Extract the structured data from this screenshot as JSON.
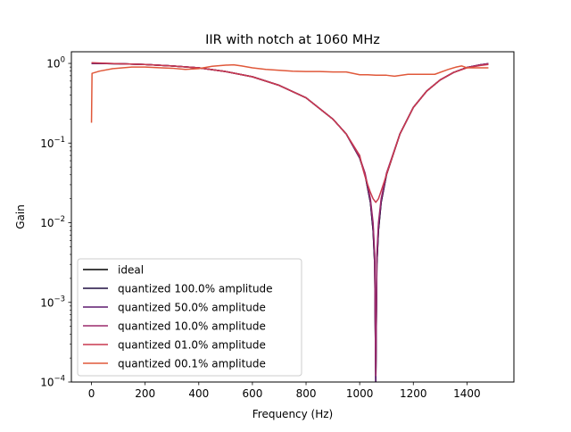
{
  "chart_data": {
    "type": "line",
    "title": "IIR with notch at 1060 MHz",
    "xlabel": "Frequency (Hz)",
    "ylabel": "Gain",
    "xlim": [
      -75,
      1575
    ],
    "ylim": [
      0.0001,
      1.4
    ],
    "yscale": "log",
    "grid": false,
    "legend_position": "lower-left",
    "xticks": [
      0,
      200,
      400,
      600,
      800,
      1000,
      1200,
      1400
    ],
    "yticks": [
      {
        "value": 1,
        "mantissa": "10",
        "exp": "0"
      },
      {
        "value": 0.1,
        "mantissa": "10",
        "exp": "−1"
      },
      {
        "value": 0.01,
        "mantissa": "10",
        "exp": "−2"
      },
      {
        "value": 0.001,
        "mantissa": "10",
        "exp": "−3"
      },
      {
        "value": 0.0001,
        "mantissa": "10",
        "exp": "−4"
      }
    ],
    "notch_hz": 1060,
    "series": [
      {
        "name": "ideal",
        "color": "#000000",
        "points": [
          [
            0,
            1.0
          ],
          [
            100,
            0.99
          ],
          [
            200,
            0.97
          ],
          [
            300,
            0.93
          ],
          [
            400,
            0.88
          ],
          [
            500,
            0.79
          ],
          [
            600,
            0.68
          ],
          [
            700,
            0.53
          ],
          [
            800,
            0.37
          ],
          [
            900,
            0.2
          ],
          [
            950,
            0.13
          ],
          [
            1000,
            0.065
          ],
          [
            1020,
            0.04
          ],
          [
            1040,
            0.018
          ],
          [
            1050,
            0.008
          ],
          [
            1056,
            0.003
          ],
          [
            1060,
            0.0001
          ],
          [
            1064,
            0.003
          ],
          [
            1070,
            0.008
          ],
          [
            1080,
            0.018
          ],
          [
            1100,
            0.04
          ],
          [
            1150,
            0.13
          ],
          [
            1200,
            0.28
          ],
          [
            1250,
            0.45
          ],
          [
            1300,
            0.62
          ],
          [
            1350,
            0.77
          ],
          [
            1400,
            0.89
          ],
          [
            1450,
            0.96
          ],
          [
            1480,
            0.99
          ]
        ]
      },
      {
        "name": "quantized 100.0% amplitude",
        "color": "#1f0d40",
        "points": [
          [
            0,
            1.0
          ],
          [
            100,
            0.99
          ],
          [
            200,
            0.97
          ],
          [
            300,
            0.93
          ],
          [
            400,
            0.88
          ],
          [
            500,
            0.79
          ],
          [
            600,
            0.68
          ],
          [
            700,
            0.53
          ],
          [
            800,
            0.37
          ],
          [
            900,
            0.2
          ],
          [
            950,
            0.13
          ],
          [
            1000,
            0.065
          ],
          [
            1020,
            0.04
          ],
          [
            1040,
            0.018
          ],
          [
            1050,
            0.008
          ],
          [
            1056,
            0.003
          ],
          [
            1060,
            0.0001
          ],
          [
            1064,
            0.003
          ],
          [
            1070,
            0.008
          ],
          [
            1080,
            0.018
          ],
          [
            1100,
            0.04
          ],
          [
            1150,
            0.13
          ],
          [
            1200,
            0.28
          ],
          [
            1250,
            0.45
          ],
          [
            1300,
            0.62
          ],
          [
            1350,
            0.77
          ],
          [
            1400,
            0.89
          ],
          [
            1450,
            0.96
          ],
          [
            1480,
            0.99
          ]
        ]
      },
      {
        "name": "quantized 50.0% amplitude",
        "color": "#5e1a6e",
        "points": [
          [
            0,
            1.0
          ],
          [
            100,
            0.99
          ],
          [
            200,
            0.97
          ],
          [
            300,
            0.93
          ],
          [
            400,
            0.88
          ],
          [
            500,
            0.79
          ],
          [
            600,
            0.68
          ],
          [
            700,
            0.53
          ],
          [
            800,
            0.37
          ],
          [
            900,
            0.2
          ],
          [
            950,
            0.13
          ],
          [
            1000,
            0.066
          ],
          [
            1020,
            0.041
          ],
          [
            1040,
            0.019
          ],
          [
            1050,
            0.009
          ],
          [
            1056,
            0.0035
          ],
          [
            1060,
            0.0001
          ],
          [
            1064,
            0.0035
          ],
          [
            1070,
            0.009
          ],
          [
            1080,
            0.019
          ],
          [
            1100,
            0.041
          ],
          [
            1150,
            0.13
          ],
          [
            1200,
            0.28
          ],
          [
            1250,
            0.45
          ],
          [
            1300,
            0.62
          ],
          [
            1350,
            0.77
          ],
          [
            1400,
            0.89
          ],
          [
            1450,
            0.96
          ],
          [
            1480,
            0.99
          ]
        ]
      },
      {
        "name": "quantized 10.0% amplitude",
        "color": "#9b2a6b",
        "points": [
          [
            0,
            1.01
          ],
          [
            100,
            0.99
          ],
          [
            200,
            0.97
          ],
          [
            300,
            0.93
          ],
          [
            400,
            0.88
          ],
          [
            500,
            0.79
          ],
          [
            600,
            0.68
          ],
          [
            700,
            0.53
          ],
          [
            800,
            0.37
          ],
          [
            900,
            0.2
          ],
          [
            950,
            0.13
          ],
          [
            1000,
            0.066
          ],
          [
            1020,
            0.042
          ],
          [
            1040,
            0.02
          ],
          [
            1050,
            0.01
          ],
          [
            1056,
            0.004
          ],
          [
            1060,
            0.00012
          ],
          [
            1064,
            0.004
          ],
          [
            1070,
            0.01
          ],
          [
            1080,
            0.02
          ],
          [
            1100,
            0.042
          ],
          [
            1150,
            0.13
          ],
          [
            1200,
            0.28
          ],
          [
            1250,
            0.45
          ],
          [
            1300,
            0.62
          ],
          [
            1350,
            0.77
          ],
          [
            1400,
            0.89
          ],
          [
            1450,
            0.96
          ],
          [
            1480,
            0.99
          ]
        ]
      },
      {
        "name": "quantized 01.0% amplitude",
        "color": "#c8394f",
        "points": [
          [
            0,
            1.02
          ],
          [
            100,
            0.99
          ],
          [
            200,
            0.97
          ],
          [
            300,
            0.93
          ],
          [
            400,
            0.88
          ],
          [
            500,
            0.79
          ],
          [
            600,
            0.68
          ],
          [
            700,
            0.53
          ],
          [
            800,
            0.37
          ],
          [
            900,
            0.2
          ],
          [
            950,
            0.13
          ],
          [
            1000,
            0.07
          ],
          [
            1010,
            0.05
          ],
          [
            1020,
            0.038
          ],
          [
            1030,
            0.03
          ],
          [
            1040,
            0.024
          ],
          [
            1050,
            0.02
          ],
          [
            1060,
            0.018
          ],
          [
            1070,
            0.02
          ],
          [
            1080,
            0.025
          ],
          [
            1100,
            0.04
          ],
          [
            1150,
            0.13
          ],
          [
            1200,
            0.28
          ],
          [
            1250,
            0.45
          ],
          [
            1300,
            0.62
          ],
          [
            1350,
            0.77
          ],
          [
            1400,
            0.88
          ],
          [
            1450,
            0.94
          ],
          [
            1480,
            0.97
          ]
        ]
      },
      {
        "name": "quantized 00.1% amplitude",
        "color": "#e0583a",
        "points": [
          [
            0,
            0.18
          ],
          [
            2,
            0.75
          ],
          [
            30,
            0.8
          ],
          [
            80,
            0.86
          ],
          [
            150,
            0.9
          ],
          [
            200,
            0.9
          ],
          [
            260,
            0.88
          ],
          [
            300,
            0.87
          ],
          [
            350,
            0.84
          ],
          [
            400,
            0.86
          ],
          [
            450,
            0.92
          ],
          [
            500,
            0.95
          ],
          [
            530,
            0.96
          ],
          [
            560,
            0.93
          ],
          [
            600,
            0.88
          ],
          [
            650,
            0.84
          ],
          [
            700,
            0.82
          ],
          [
            750,
            0.8
          ],
          [
            800,
            0.79
          ],
          [
            850,
            0.79
          ],
          [
            900,
            0.78
          ],
          [
            950,
            0.78
          ],
          [
            1000,
            0.72
          ],
          [
            1030,
            0.72
          ],
          [
            1060,
            0.71
          ],
          [
            1100,
            0.71
          ],
          [
            1130,
            0.69
          ],
          [
            1180,
            0.73
          ],
          [
            1230,
            0.73
          ],
          [
            1280,
            0.73
          ],
          [
            1330,
            0.84
          ],
          [
            1360,
            0.9
          ],
          [
            1380,
            0.93
          ],
          [
            1400,
            0.88
          ],
          [
            1450,
            0.88
          ],
          [
            1480,
            0.88
          ]
        ]
      }
    ]
  }
}
